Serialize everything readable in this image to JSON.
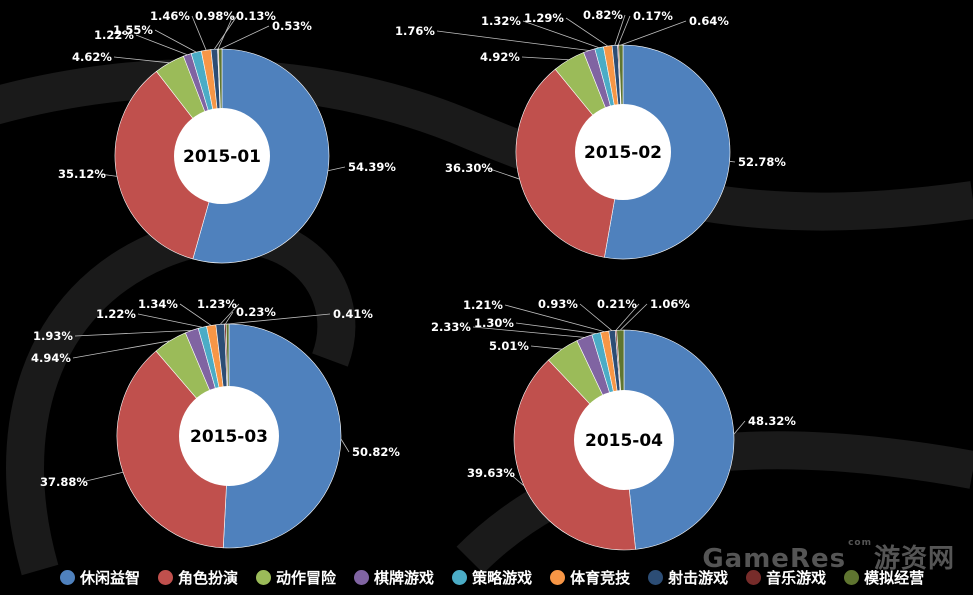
{
  "chart_data": [
    {
      "type": "pie",
      "center_label": "2015-01",
      "categories": [
        "休闲益智",
        "角色扮演",
        "动作冒险",
        "棋牌游戏",
        "策略游戏",
        "体育竞技",
        "射击游戏",
        "音乐游戏",
        "模拟经营"
      ],
      "values": [
        54.39,
        35.12,
        4.62,
        1.22,
        1.55,
        1.46,
        0.98,
        0.13,
        0.53
      ],
      "data_labels": [
        "54.39%",
        "35.12%",
        "4.62%",
        "1.22%",
        "1.55%",
        "1.46%",
        "0.98%",
        "0.13%",
        "0.53%"
      ]
    },
    {
      "type": "pie",
      "center_label": "2015-02",
      "categories": [
        "休闲益智",
        "角色扮演",
        "动作冒险",
        "棋牌游戏",
        "策略游戏",
        "体育竞技",
        "射击游戏",
        "音乐游戏",
        "模拟经营"
      ],
      "values": [
        52.78,
        36.3,
        4.92,
        1.76,
        1.32,
        1.29,
        0.82,
        0.17,
        0.64
      ],
      "data_labels": [
        "52.78%",
        "36.30%",
        "4.92%",
        "1.76%",
        "1.32%",
        "1.29%",
        "0.82%",
        "0.17%",
        "0.64%"
      ]
    },
    {
      "type": "pie",
      "center_label": "2015-03",
      "categories": [
        "休闲益智",
        "角色扮演",
        "动作冒险",
        "棋牌游戏",
        "策略游戏",
        "体育竞技",
        "射击游戏",
        "音乐游戏",
        "模拟经营"
      ],
      "values": [
        50.82,
        37.88,
        4.94,
        1.93,
        1.22,
        1.34,
        1.23,
        0.23,
        0.41
      ],
      "data_labels": [
        "50.82%",
        "37.88%",
        "4.94%",
        "1.93%",
        "1.22%",
        "1.34%",
        "1.23%",
        "0.23%",
        "0.41%"
      ]
    },
    {
      "type": "pie",
      "center_label": "2015-04",
      "categories": [
        "休闲益智",
        "角色扮演",
        "动作冒险",
        "棋牌游戏",
        "策略游戏",
        "体育竞技",
        "射击游戏",
        "音乐游戏",
        "模拟经营"
      ],
      "values": [
        48.32,
        39.63,
        5.01,
        2.33,
        1.3,
        1.21,
        0.93,
        0.21,
        1.06
      ],
      "data_labels": [
        "48.32%",
        "39.63%",
        "5.01%",
        "2.33%",
        "1.30%",
        "1.21%",
        "0.93%",
        "0.21%",
        "1.06%"
      ]
    }
  ],
  "legend": [
    {
      "name": "休闲益智",
      "color": "#4F81BD"
    },
    {
      "name": "角色扮演",
      "color": "#C0504D"
    },
    {
      "name": "动作冒险",
      "color": "#9BBB59"
    },
    {
      "name": "棋牌游戏",
      "color": "#8064A2"
    },
    {
      "name": "策略游戏",
      "color": "#4BACC6"
    },
    {
      "name": "体育竞技",
      "color": "#F79646"
    },
    {
      "name": "射击游戏",
      "color": "#2C4D75"
    },
    {
      "name": "音乐游戏",
      "color": "#772C2A"
    },
    {
      "name": "模拟经营",
      "color": "#5F7530"
    }
  ],
  "watermark": {
    "brand": "GameRes",
    "domain": "com",
    "cn": "游资网"
  }
}
